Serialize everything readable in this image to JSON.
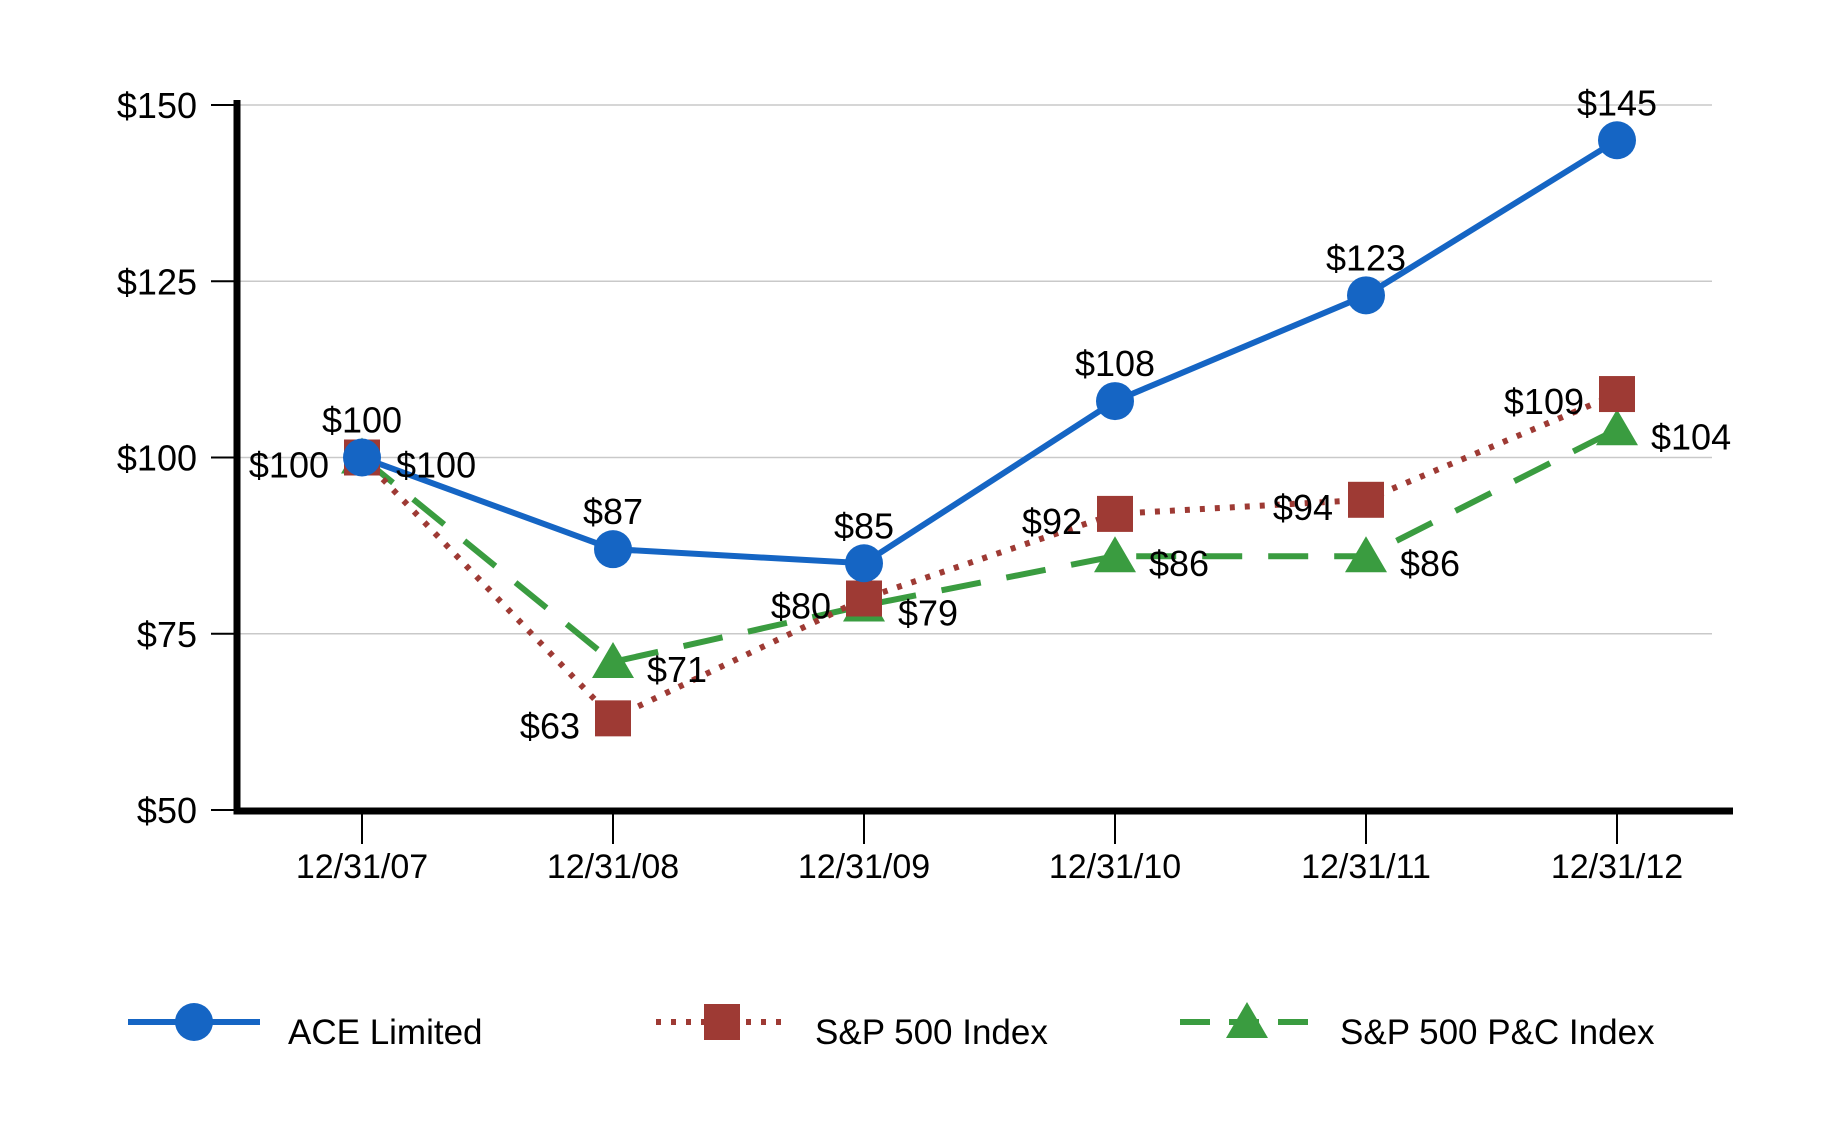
{
  "chart_data": {
    "type": "line",
    "title": "",
    "x_labels": [
      "12/31/07",
      "12/31/08",
      "12/31/09",
      "12/31/10",
      "12/31/11",
      "12/31/12"
    ],
    "y_axis": {
      "min": 50,
      "max": 150,
      "ticks": [
        {
          "label": "$150",
          "value": 150
        },
        {
          "label": "$125",
          "value": 125
        },
        {
          "label": "$100",
          "value": 100
        },
        {
          "label": "$75",
          "value": 75
        },
        {
          "label": "$50",
          "value": 50
        }
      ]
    },
    "grid": "horizontal",
    "gridline_color": "#c9c9c9",
    "axis_color": "#000000",
    "series": [
      {
        "name": "ACE Limited",
        "color": "#1565c4",
        "marker": "circle",
        "line_style": "solid",
        "values": [
          100,
          87,
          85,
          108,
          123,
          145
        ],
        "point_labels": [
          "$100",
          "$87",
          "$85",
          "$108",
          "$123",
          "$145"
        ],
        "label_side": "above"
      },
      {
        "name": "S&P 500 Index",
        "color": "#9e3a34",
        "marker": "square",
        "line_style": "dotted",
        "values": [
          100,
          63,
          80,
          92,
          94,
          109
        ],
        "point_labels": [
          "$100",
          "$63",
          "$80",
          "$92",
          "$94",
          "$109"
        ],
        "label_side": "left"
      },
      {
        "name": "S&P 500 P&C Index",
        "color": "#3a9c40",
        "marker": "triangle",
        "line_style": "dashed",
        "values": [
          100,
          71,
          79,
          86,
          86,
          104
        ],
        "point_labels": [
          "$100",
          "$71",
          "$79",
          "$86",
          "$86",
          "$104"
        ],
        "label_side": "right"
      }
    ],
    "legend": {
      "position": "bottom",
      "items": [
        "ACE Limited",
        "S&P 500 Index",
        "S&P 500 P&C Index"
      ]
    }
  }
}
